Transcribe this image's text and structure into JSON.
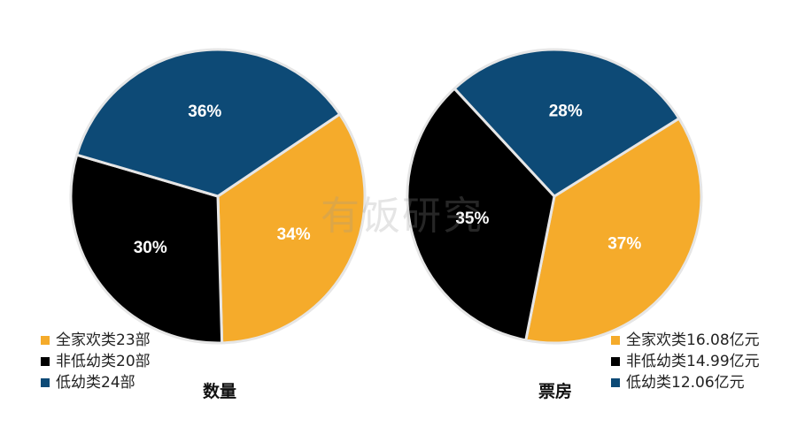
{
  "watermark": "有饭研究",
  "colors": {
    "orange": "#F5AB2B",
    "black": "#000000",
    "blue": "#0D4A76",
    "edge": "#E6E6E6"
  },
  "chart_data": [
    {
      "type": "pie",
      "title": "数量",
      "slices": [
        {
          "label": "全家欢类23部",
          "value": 34,
          "pct_label": "34%",
          "color": "#F5AB2B"
        },
        {
          "label": "非低幼类20部",
          "value": 30,
          "pct_label": "30%",
          "color": "#000000"
        },
        {
          "label": "低幼类24部",
          "value": 36,
          "pct_label": "36%",
          "color": "#0D4A76"
        }
      ]
    },
    {
      "type": "pie",
      "title": "票房",
      "slices": [
        {
          "label": "全家欢类16.08亿元",
          "value": 37,
          "pct_label": "37%",
          "color": "#F5AB2B"
        },
        {
          "label": "非低幼类14.99亿元",
          "value": 35,
          "pct_label": "35%",
          "color": "#000000"
        },
        {
          "label": "低幼类12.06亿元",
          "value": 28,
          "pct_label": "28%",
          "color": "#0D4A76"
        }
      ]
    }
  ]
}
